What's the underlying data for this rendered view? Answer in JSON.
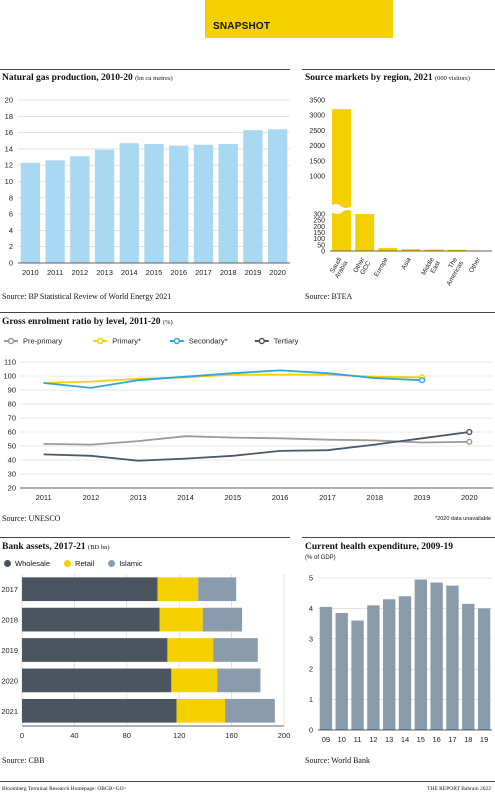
{
  "header": {
    "snapshot_label": "SNAPSHOT"
  },
  "gas": {
    "title": "Natural gas production, 2010-20",
    "unit": "(bn cu metres)",
    "source": "Source: BP Statistical Review of World Energy 2021",
    "chart_data": {
      "type": "bar",
      "categories": [
        "2010",
        "2011",
        "2012",
        "2013",
        "2014",
        "2015",
        "2016",
        "2017",
        "2018",
        "2019",
        "2020"
      ],
      "values": [
        12.3,
        12.6,
        13.1,
        13.9,
        14.7,
        14.6,
        14.4,
        14.5,
        14.6,
        16.3,
        16.4
      ],
      "ylim": [
        0,
        20
      ],
      "yticks": [
        0,
        2,
        4,
        6,
        8,
        10,
        12,
        14,
        16,
        18,
        20
      ],
      "color": "#a9d8f2"
    }
  },
  "tourism": {
    "title": "Source markets by region, 2021",
    "unit": "(000 visitors)",
    "source": "Source: BTEA",
    "chart_data": {
      "type": "bar",
      "categories": [
        "Saudi Arabia",
        "Other GCC",
        "Europe",
        "Asia",
        "Middle East",
        "The Americas",
        "Other"
      ],
      "category_lines": [
        [
          "Saudi",
          "Arabia"
        ],
        [
          "Other",
          "GCC"
        ],
        [
          "Europe"
        ],
        [
          "Asia"
        ],
        [
          "Middle",
          "East"
        ],
        [
          "The",
          "Americas"
        ],
        [
          "Other"
        ]
      ],
      "values": [
        3200,
        300,
        25,
        15,
        12,
        10,
        3
      ],
      "yticks": [
        0,
        50,
        100,
        150,
        200,
        250,
        300,
        1000,
        1500,
        2000,
        2500,
        3000,
        3500
      ],
      "axis_break": [
        300,
        1000
      ],
      "color": "#f5d000"
    }
  },
  "enrolment": {
    "title": "Gross enrolment ratio by level, 2011-20",
    "unit": "(%)",
    "source": "Source: UNESCO",
    "note": "*2020 data unavailable",
    "chart_data": {
      "type": "line",
      "x": [
        "2011",
        "2012",
        "2013",
        "2014",
        "2015",
        "2016",
        "2017",
        "2018",
        "2019",
        "2020"
      ],
      "ylim": [
        20,
        110
      ],
      "yticks": [
        20,
        30,
        40,
        50,
        60,
        70,
        80,
        90,
        100,
        110
      ],
      "series": [
        {
          "name": "Pre-primary",
          "color": "#a09a96",
          "values": [
            51.5,
            51,
            53.5,
            57,
            56,
            55.5,
            54.5,
            54,
            52.5,
            53
          ]
        },
        {
          "name": "Primary*",
          "color": "#f5d000",
          "values": [
            95,
            96,
            98,
            99,
            101,
            101,
            101,
            99.5,
            99,
            null
          ]
        },
        {
          "name": "Secondary*",
          "color": "#2ea8d8",
          "values": [
            95,
            91.5,
            97,
            99.5,
            102,
            104,
            102,
            98.5,
            97,
            null
          ]
        },
        {
          "name": "Tertiary",
          "color": "#4a5a6a",
          "values": [
            44,
            43,
            39.5,
            41,
            43,
            46.5,
            47,
            51,
            55.5,
            60
          ]
        }
      ]
    }
  },
  "bank": {
    "title": "Bank assets, 2017-21",
    "unit": "(BD bn)",
    "source": "Source: CBB",
    "chart_data": {
      "type": "bar",
      "orientation": "horizontal",
      "stacked": true,
      "categories": [
        "2017",
        "2018",
        "2019",
        "2020",
        "2021"
      ],
      "xlim": [
        0,
        200
      ],
      "xticks": [
        0,
        40,
        80,
        120,
        160,
        200
      ],
      "series": [
        {
          "name": "Wholesale",
          "color": "#4a5560",
          "values": [
            103.5,
            105,
            111,
            114,
            118
          ]
        },
        {
          "name": "Retail",
          "color": "#f5d000",
          "values": [
            31,
            33,
            35,
            35,
            37
          ]
        },
        {
          "name": "Islamic",
          "color": "#8a9bab",
          "values": [
            29,
            30,
            34,
            33,
            38
          ]
        }
      ]
    }
  },
  "health": {
    "title": "Current health expenditure, 2009-19",
    "unit": "(% of GDP)",
    "source": "Source: World Bank",
    "chart_data": {
      "type": "bar",
      "categories": [
        "09",
        "10",
        "11",
        "12",
        "13",
        "14",
        "15",
        "16",
        "17",
        "18",
        "19"
      ],
      "values": [
        4.05,
        3.85,
        3.6,
        4.1,
        4.3,
        4.4,
        4.95,
        4.85,
        4.75,
        4.15,
        4.0
      ],
      "ylim": [
        0,
        5
      ],
      "yticks": [
        0,
        1,
        2,
        3,
        4,
        5
      ],
      "color": "#8a9bab"
    }
  },
  "footer": {
    "left": "Bloomberg Terminal Research Homepage: OBGR<GO>",
    "right": "THE REPORT Bahrain 2022"
  }
}
